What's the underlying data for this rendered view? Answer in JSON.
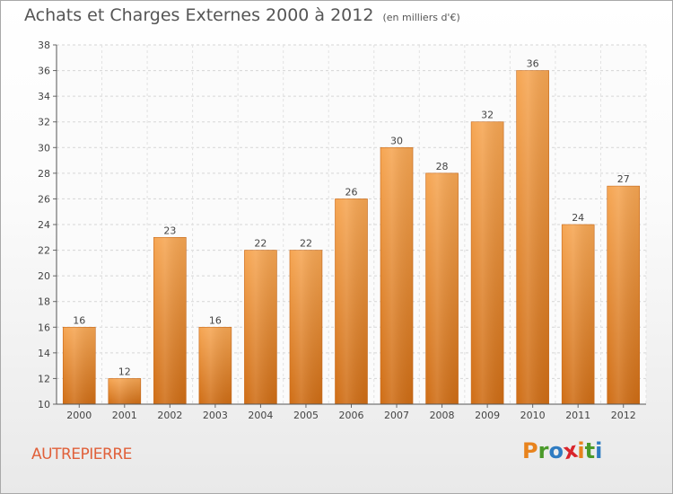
{
  "title": "Achats et Charges Externes 2000 à 2012",
  "subtitle": "(en milliers d'€)",
  "commune": "AUTREPIERRE",
  "logo": {
    "letters": [
      "P",
      "r",
      "o",
      "x",
      "i",
      "t",
      "i"
    ],
    "colors": [
      "#e8831d",
      "#4a9a2a",
      "#2f7cc2",
      "#d9242b",
      "#e8831d",
      "#4a9a2a",
      "#2f7cc2"
    ]
  },
  "colors": {
    "bar_top": "#f6a653",
    "bar_bottom": "#cf6d15",
    "text": "#555555"
  },
  "chart_data": {
    "type": "bar",
    "categories": [
      "2000",
      "2001",
      "2002",
      "2003",
      "2004",
      "2005",
      "2006",
      "2007",
      "2008",
      "2009",
      "2010",
      "2011",
      "2012"
    ],
    "values": [
      16,
      12,
      23,
      16,
      22,
      22,
      26,
      30,
      28,
      32,
      36,
      24,
      27
    ],
    "ylim": [
      10,
      38
    ],
    "yticks": [
      10,
      12,
      14,
      16,
      18,
      20,
      22,
      24,
      26,
      28,
      30,
      32,
      34,
      36,
      38
    ],
    "grid": true,
    "data_labels": true
  }
}
